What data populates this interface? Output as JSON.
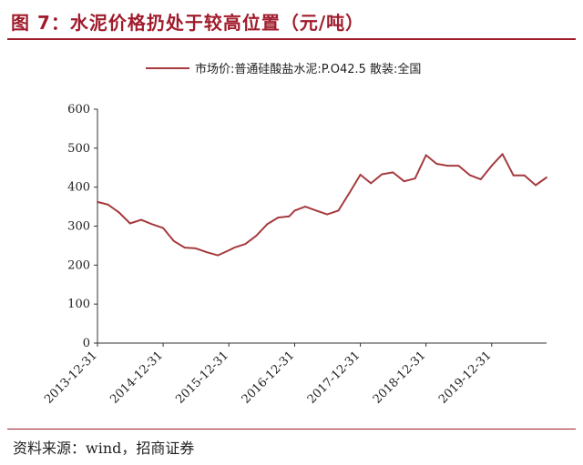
{
  "figure": {
    "title": "图 7：水泥价格扔处于较高位置（元/吨）",
    "source": "资料来源：wind，招商证券"
  },
  "colors": {
    "accent": "#a01c2c",
    "line": "#a53a3e"
  },
  "chart_data": {
    "type": "line",
    "title": "",
    "xlabel": "",
    "ylabel": "",
    "ylim": [
      0,
      600
    ],
    "yticks": [
      0,
      100,
      200,
      300,
      400,
      500,
      600
    ],
    "xlim": [
      "2013-12-31",
      "2020-10-31"
    ],
    "xticks": [
      "2013-12-31",
      "2014-12-31",
      "2015-12-31",
      "2016-12-31",
      "2017-12-31",
      "2018-12-31",
      "2019-12-31"
    ],
    "grid": false,
    "legend": "top-right",
    "series": [
      {
        "name": "市场价:普通硅酸盐水泥:P.O42.5 散装:全国",
        "x": [
          "2013-12-31",
          "2014-02-28",
          "2014-04-30",
          "2014-06-30",
          "2014-08-31",
          "2014-10-31",
          "2014-12-31",
          "2015-02-28",
          "2015-04-30",
          "2015-06-30",
          "2015-08-31",
          "2015-10-31",
          "2015-12-31",
          "2016-01-31",
          "2016-03-31",
          "2016-05-31",
          "2016-07-31",
          "2016-09-30",
          "2016-11-30",
          "2016-12-31",
          "2017-02-28",
          "2017-04-30",
          "2017-06-30",
          "2017-08-31",
          "2017-10-31",
          "2017-12-31",
          "2018-02-28",
          "2018-04-30",
          "2018-06-30",
          "2018-08-31",
          "2018-10-31",
          "2018-12-31",
          "2019-02-28",
          "2019-04-30",
          "2019-06-30",
          "2019-08-31",
          "2019-10-31",
          "2019-12-31",
          "2020-02-29",
          "2020-04-30",
          "2020-06-30",
          "2020-08-31",
          "2020-10-31"
        ],
        "values": [
          362,
          355,
          335,
          307,
          316,
          305,
          295,
          262,
          245,
          243,
          233,
          225,
          238,
          245,
          254,
          275,
          305,
          322,
          325,
          340,
          350,
          340,
          330,
          340,
          385,
          432,
          410,
          433,
          438,
          415,
          422,
          482,
          460,
          455,
          455,
          431,
          420,
          455,
          485,
          430,
          430,
          405,
          425
        ]
      }
    ]
  }
}
